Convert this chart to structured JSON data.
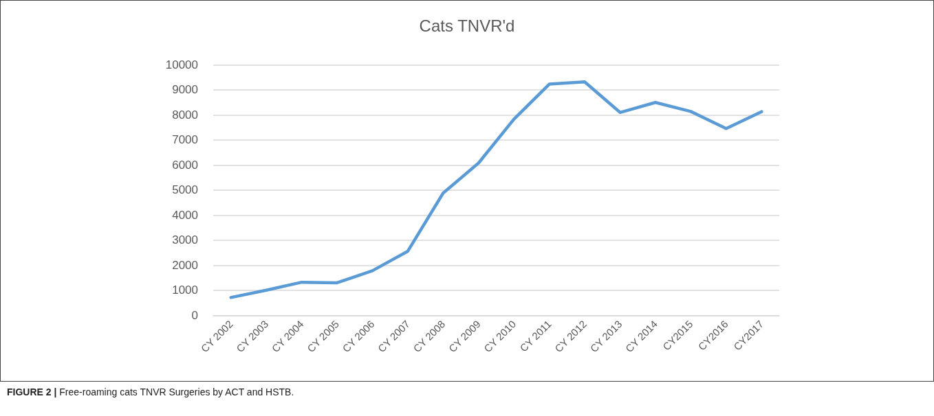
{
  "chart_data": {
    "type": "line",
    "title": "Cats TNVR'd",
    "categories": [
      "CY 2002",
      "CY 2003",
      "CY 2004",
      "CY 2005",
      "CY 2006",
      "CY 2007",
      "CY 2008",
      "CY 2009",
      "CY 2010",
      "CY 2011",
      "CY 2012",
      "CY 2013",
      "CY 2014",
      "CY2015",
      "CY2016",
      "CY2017"
    ],
    "series": [
      {
        "color": "#5b9bd5",
        "values": [
          710,
          1000,
          1320,
          1300,
          1780,
          2560,
          4880,
          6080,
          7830,
          9230,
          9320,
          8100,
          8500,
          8140,
          7460,
          8130
        ]
      }
    ],
    "ylim": [
      0,
      10000
    ],
    "yticks": [
      0,
      1000,
      2000,
      3000,
      4000,
      5000,
      6000,
      7000,
      8000,
      9000,
      10000
    ],
    "grid": "y",
    "marker": "none",
    "line_style": "solid",
    "annotations": [
      "FIGURE 2 | Free-roaming cats TNVR Surgeries by ACT and HSTB."
    ]
  }
}
